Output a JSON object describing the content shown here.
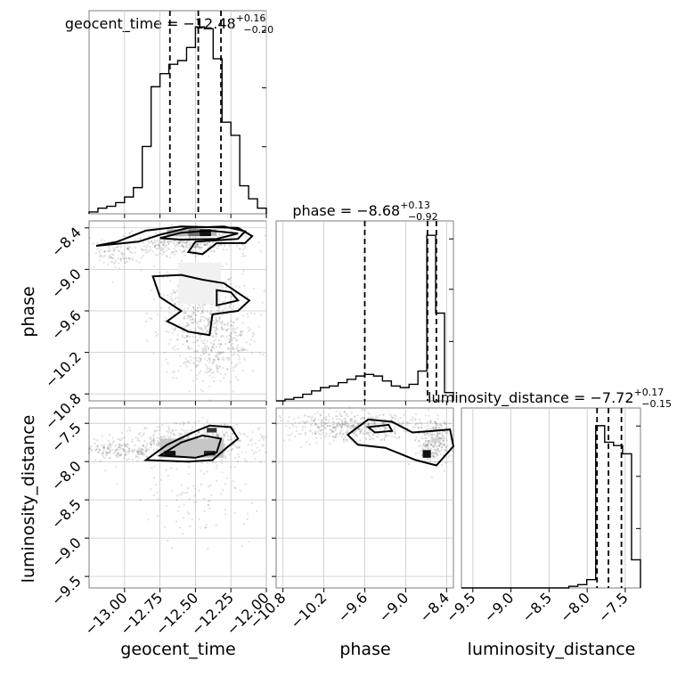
{
  "chart_data": {
    "type": "corner",
    "parameters": [
      "geocent_time",
      "phase",
      "luminosity_distance"
    ],
    "titles": [
      {
        "param": "geocent_time",
        "text": "geocent_time = −12.48",
        "plus": "+0.16",
        "minus": "−0.20"
      },
      {
        "param": "phase",
        "text": "phase = −8.68",
        "plus": "+0.13",
        "minus": "−0.92"
      },
      {
        "param": "luminosity_distance",
        "text": "luminosity_distance = −7.72",
        "plus": "+0.17",
        "minus": "−0.15"
      }
    ],
    "ranges": {
      "geocent_time": [
        -13.25,
        -12.0
      ],
      "phase": [
        -10.9,
        -8.3
      ],
      "luminosity_distance": [
        -9.65,
        -7.3
      ]
    },
    "xticks": {
      "geocent_time": [
        -13.0,
        -12.75,
        -12.5,
        -12.25,
        -12.0
      ],
      "phase": [
        -10.8,
        -10.2,
        -9.6,
        -9.0,
        -8.4
      ],
      "luminosity_distance": [
        -9.5,
        -9.0,
        -8.5,
        -8.0,
        -7.5
      ]
    },
    "xtick_labels": {
      "geocent_time": [
        "−13.00",
        "−12.75",
        "−12.50",
        "−12.25",
        "−12.00"
      ],
      "phase": [
        "−10.8",
        "−10.2",
        "−9.6",
        "−9.0",
        "−8.4"
      ],
      "luminosity_distance": [
        "−9.5",
        "−9.0",
        "−8.5",
        "−8.0",
        "−7.5"
      ]
    },
    "yticks": {
      "phase": [
        -8.4,
        -9.0,
        -9.6,
        -10.2,
        -10.8
      ],
      "luminosity_distance": [
        -7.5,
        -8.0,
        -8.5,
        -9.0,
        -9.5
      ]
    },
    "ytick_labels": {
      "phase": [
        "−8.4",
        "−9.0",
        "−9.6",
        "−10.2",
        "−10.8"
      ],
      "luminosity_distance": [
        "−7.5",
        "−8.0",
        "−8.5",
        "−9.0",
        "−9.5"
      ]
    },
    "axis_labels": {
      "geocent_time": "geocent_time",
      "phase": "phase",
      "luminosity_distance": "luminosity_distance"
    },
    "quantiles": {
      "geocent_time": [
        -12.68,
        -12.48,
        -12.32
      ],
      "phase": [
        -9.6,
        -8.68,
        -8.55
      ],
      "luminosity_distance": [
        -7.87,
        -7.72,
        -7.55
      ]
    },
    "histograms": {
      "geocent_time": {
        "edges": [
          -13.25,
          -13.1875,
          -13.125,
          -13.0625,
          -13.0,
          -12.9375,
          -12.875,
          -12.8125,
          -12.75,
          -12.6875,
          -12.625,
          -12.5625,
          -12.5,
          -12.4375,
          -12.375,
          -12.3125,
          -12.25,
          -12.1875,
          -12.125,
          -12.0625,
          -12.0
        ],
        "counts": [
          0.01,
          0.03,
          0.04,
          0.06,
          0.09,
          0.14,
          0.36,
          0.68,
          0.75,
          0.8,
          0.82,
          0.89,
          1.0,
          0.99,
          0.83,
          0.49,
          0.42,
          0.15,
          0.08,
          0.03
        ]
      },
      "phase": {
        "edges": [
          -10.9,
          -10.77,
          -10.64,
          -10.51,
          -10.38,
          -10.25,
          -10.12,
          -9.99,
          -9.86,
          -9.73,
          -9.6,
          -9.47,
          -9.34,
          -9.21,
          -9.08,
          -8.95,
          -8.82,
          -8.69,
          -8.56,
          -8.43,
          -8.3
        ],
        "counts": [
          0.0,
          0.01,
          0.02,
          0.04,
          0.06,
          0.08,
          0.09,
          0.11,
          0.13,
          0.15,
          0.16,
          0.15,
          0.12,
          0.09,
          0.08,
          0.1,
          0.18,
          1.0,
          0.53,
          0.05
        ]
      },
      "luminosity_distance": {
        "edges": [
          -9.65,
          -9.5325,
          -9.415,
          -9.2975,
          -9.18,
          -9.0625,
          -8.945,
          -8.8275,
          -8.71,
          -8.5925,
          -8.475,
          -8.3575,
          -8.24,
          -8.1225,
          -8.005,
          -7.8875,
          -7.77,
          -7.6525,
          -7.535,
          -7.4175,
          -7.3
        ],
        "counts": [
          0,
          0,
          0,
          0,
          0,
          0,
          0,
          0,
          0,
          0,
          0,
          0,
          0.01,
          0.02,
          0.05,
          0.98,
          0.88,
          0.86,
          0.81,
          0.17
        ]
      }
    },
    "colors": {
      "line": "#000000",
      "frame": "#7f7f7f",
      "grid": "#c8c8c8",
      "points": "#000000"
    }
  }
}
